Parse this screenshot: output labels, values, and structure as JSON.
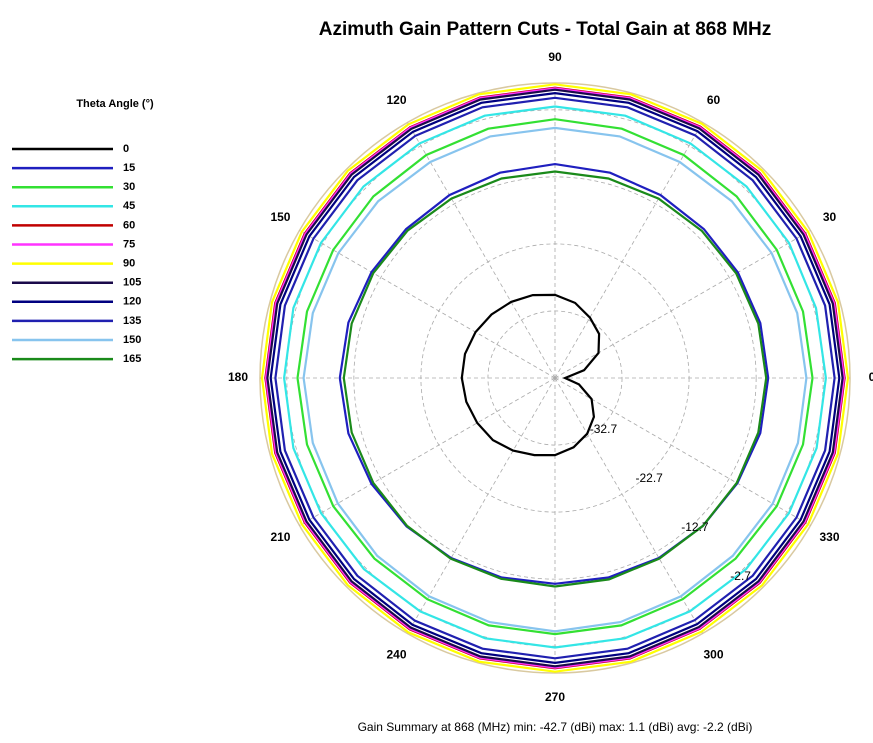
{
  "chart_data": {
    "type": "polar",
    "title": "Azimuth Gain Pattern Cuts - Total Gain at 868 MHz",
    "legend_title": "Theta Angle (°)",
    "legend": "left",
    "summary": "Gain Summary at  868  (MHz)  min:  -42.7  (dBi)  max:  1.1  (dBi)  avg:  -2.2  (dBi)",
    "x": [
      0,
      15,
      30,
      45,
      60,
      75,
      90,
      105,
      120,
      135,
      150,
      165,
      180,
      195,
      210,
      225,
      240,
      255,
      270,
      285,
      300,
      315,
      330,
      345
    ],
    "xticks": [
      0,
      30,
      60,
      90,
      120,
      150,
      180,
      210,
      240,
      270,
      300,
      330
    ],
    "rlim": [
      -42.7,
      1.3
    ],
    "rticks": [
      -32.7,
      -22.7,
      -12.7,
      -2.7
    ],
    "grid": true,
    "series": [
      {
        "name": "0",
        "color": "#000000",
        "values": [
          -41.2,
          -38.2,
          -35.2,
          -33.4,
          -32.3,
          -31.1,
          -30.3,
          -29.9,
          -29.6,
          -29.3,
          -29.0,
          -28.8,
          -28.8,
          -29.0,
          -29.3,
          -29.6,
          -30.2,
          -30.8,
          -31.2,
          -32.0,
          -33.1,
          -34.5,
          -36.4,
          -39.0
        ]
      },
      {
        "name": "15",
        "color": "#1f1fbf",
        "values": [
          -10.9,
          -11.0,
          -11.2,
          -11.3,
          -11.2,
          -11.0,
          -10.8,
          -11.0,
          -11.2,
          -11.3,
          -11.1,
          -10.8,
          -10.6,
          -10.8,
          -11.1,
          -11.4,
          -11.7,
          -11.9,
          -12.0,
          -11.9,
          -11.7,
          -11.5,
          -11.3,
          -11.0
        ]
      },
      {
        "name": "30",
        "color": "#33e033",
        "values": [
          -4.3,
          -4.4,
          -4.5,
          -4.4,
          -4.3,
          -4.2,
          -4.1,
          -4.2,
          -4.3,
          -4.4,
          -4.5,
          -4.4,
          -4.3,
          -4.4,
          -4.5,
          -4.6,
          -4.6,
          -4.5,
          -4.5,
          -4.5,
          -4.6,
          -4.6,
          -4.5,
          -4.4
        ]
      },
      {
        "name": "45",
        "color": "#33e6e6",
        "values": [
          -2.3,
          -2.4,
          -2.4,
          -2.3,
          -2.3,
          -2.2,
          -2.2,
          -2.2,
          -2.3,
          -2.3,
          -2.4,
          -2.3,
          -2.3,
          -2.3,
          -2.4,
          -2.4,
          -2.5,
          -2.5,
          -2.5,
          -2.5,
          -2.5,
          -2.4,
          -2.4,
          -2.3
        ]
      },
      {
        "name": "60",
        "color": "#c00000",
        "values": [
          0.5,
          0.5,
          0.4,
          0.5,
          0.6,
          0.6,
          0.6,
          0.6,
          0.5,
          0.5,
          0.4,
          0.5,
          0.5,
          0.5,
          0.4,
          0.5,
          0.6,
          0.6,
          0.6,
          0.6,
          0.5,
          0.5,
          0.4,
          0.5
        ]
      },
      {
        "name": "75",
        "color": "#ff33ff",
        "values": [
          0.4,
          0.4,
          0.3,
          0.4,
          0.5,
          0.5,
          0.5,
          0.5,
          0.4,
          0.4,
          0.3,
          0.4,
          0.4,
          0.4,
          0.3,
          0.4,
          0.5,
          0.5,
          0.5,
          0.5,
          0.4,
          0.4,
          0.3,
          0.4
        ]
      },
      {
        "name": "90",
        "color": "#ffff00",
        "values": [
          1.0,
          1.0,
          0.9,
          1.0,
          1.1,
          1.1,
          1.1,
          1.1,
          1.0,
          1.0,
          0.9,
          1.0,
          1.0,
          1.0,
          0.9,
          1.0,
          1.1,
          1.1,
          1.1,
          1.1,
          1.0,
          1.0,
          0.9,
          1.0
        ]
      },
      {
        "name": "105",
        "color": "#1a0a4a",
        "values": [
          0.2,
          0.2,
          0.1,
          0.2,
          0.3,
          0.3,
          0.3,
          0.3,
          0.2,
          0.2,
          0.1,
          0.2,
          0.2,
          0.2,
          0.1,
          0.2,
          0.3,
          0.3,
          0.3,
          0.3,
          0.2,
          0.2,
          0.1,
          0.2
        ]
      },
      {
        "name": "120",
        "color": "#000080",
        "values": [
          -0.3,
          -0.3,
          -0.4,
          -0.3,
          -0.2,
          -0.2,
          -0.2,
          -0.2,
          -0.3,
          -0.3,
          -0.4,
          -0.3,
          -0.3,
          -0.3,
          -0.4,
          -0.3,
          -0.2,
          -0.2,
          -0.2,
          -0.2,
          -0.3,
          -0.3,
          -0.4,
          -0.3
        ]
      },
      {
        "name": "135",
        "color": "#2020b0",
        "values": [
          -1.0,
          -1.0,
          -1.1,
          -1.0,
          -0.9,
          -0.9,
          -0.9,
          -0.9,
          -1.0,
          -1.0,
          -1.1,
          -1.0,
          -1.0,
          -1.0,
          -1.1,
          -1.0,
          -0.9,
          -0.9,
          -0.9,
          -0.9,
          -1.0,
          -1.0,
          -1.1,
          -1.0
        ]
      },
      {
        "name": "150",
        "color": "#87c4ee",
        "values": [
          -5.2,
          -5.3,
          -5.4,
          -5.4,
          -5.5,
          -5.4,
          -5.4,
          -5.4,
          -5.5,
          -5.4,
          -5.4,
          -5.3,
          -5.2,
          -5.3,
          -5.3,
          -5.2,
          -5.1,
          -5.0,
          -4.9,
          -5.0,
          -5.1,
          -5.2,
          -5.2,
          -5.2
        ]
      },
      {
        "name": "165",
        "color": "#1a8a1a",
        "values": [
          -11.2,
          -11.3,
          -11.5,
          -11.7,
          -11.8,
          -11.9,
          -11.9,
          -11.9,
          -11.8,
          -11.6,
          -11.4,
          -11.3,
          -11.2,
          -11.3,
          -11.4,
          -11.5,
          -11.6,
          -11.7,
          -11.6,
          -11.6,
          -11.6,
          -11.5,
          -11.4,
          -11.3
        ]
      }
    ]
  }
}
